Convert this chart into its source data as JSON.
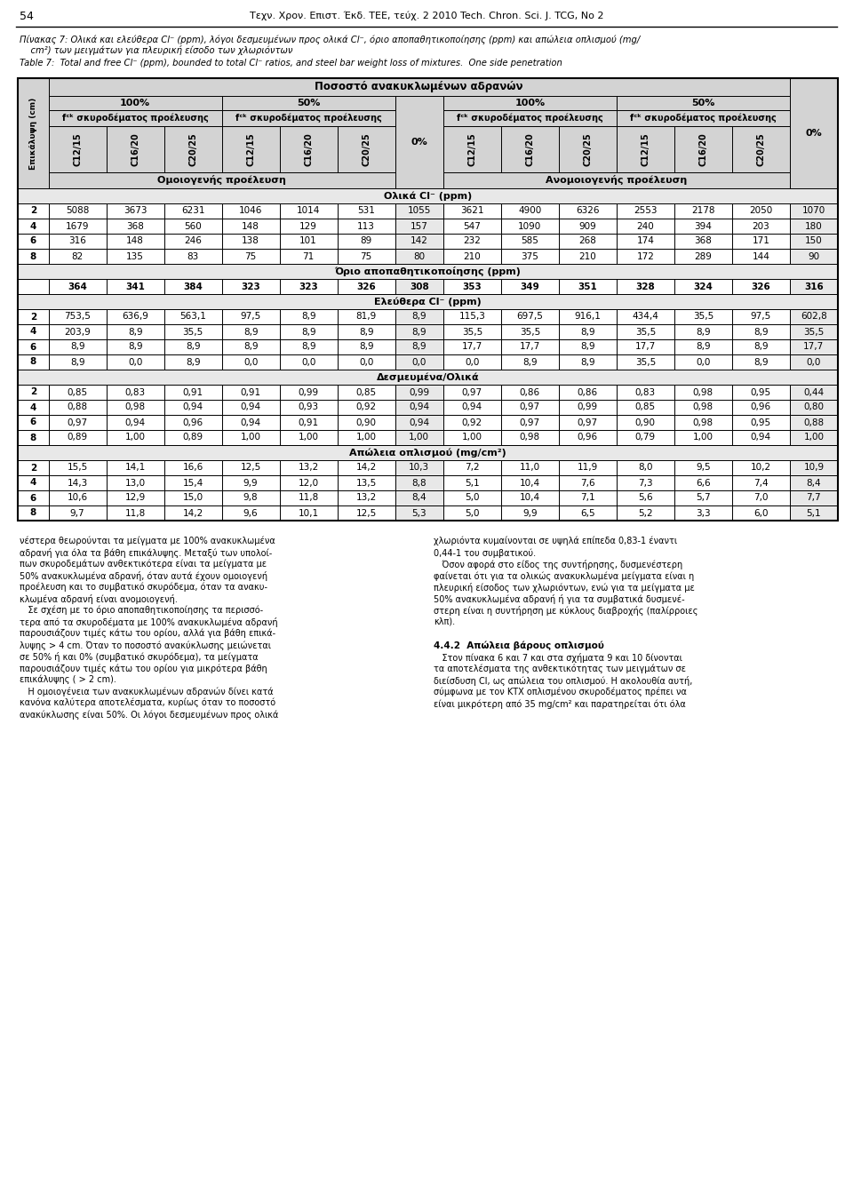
{
  "header_row1": "Ποσοστό ανακυκλωμένων αδρανών",
  "header_omoi": "Ομοιογενής προέλευση",
  "header_anomoi": "Ανομοιογενής προέλευση",
  "header_epik": "Επικάλυψη (cm)",
  "section_olika": "Ολικά Cl⁻ (ppm)",
  "section_orio": "Όριο αποπαθητικοποίησης (ppm)",
  "section_elefthera": "Ελεύθερα Cl⁻ (ppm)",
  "section_desmevmena": "Δεσμευμένα/Ολικά",
  "section_apol": "Απώλεια οπλισμού (mg/cm²)",
  "olika_data": [
    [
      2,
      5088,
      3673,
      6231,
      1046,
      1014,
      531,
      1055,
      3621,
      4900,
      6326,
      2553,
      2178,
      2050,
      1070
    ],
    [
      4,
      1679,
      368,
      560,
      148,
      129,
      113,
      157,
      547,
      1090,
      909,
      240,
      394,
      203,
      180
    ],
    [
      6,
      316,
      148,
      246,
      138,
      101,
      89,
      142,
      232,
      585,
      268,
      174,
      368,
      171,
      150
    ],
    [
      8,
      82,
      135,
      83,
      75,
      71,
      75,
      80,
      210,
      375,
      210,
      172,
      289,
      144,
      90
    ]
  ],
  "orio_data": [
    364,
    341,
    384,
    323,
    323,
    326,
    308,
    353,
    349,
    351,
    328,
    324,
    326,
    316
  ],
  "elefthera_data": [
    [
      2,
      "753,5",
      "636,9",
      "563,1",
      "97,5",
      "8,9",
      "81,9",
      "8,9",
      "115,3",
      "697,5",
      "916,1",
      "434,4",
      "35,5",
      "97,5",
      "602,8"
    ],
    [
      4,
      "203,9",
      "8,9",
      "35,5",
      "8,9",
      "8,9",
      "8,9",
      "8,9",
      "35,5",
      "35,5",
      "8,9",
      "35,5",
      "8,9",
      "8,9",
      "35,5"
    ],
    [
      6,
      "8,9",
      "8,9",
      "8,9",
      "8,9",
      "8,9",
      "8,9",
      "8,9",
      "17,7",
      "17,7",
      "8,9",
      "17,7",
      "8,9",
      "8,9",
      "17,7"
    ],
    [
      8,
      "8,9",
      "0,0",
      "8,9",
      "0,0",
      "0,0",
      "0,0",
      "0,0",
      "0,0",
      "8,9",
      "8,9",
      "35,5",
      "0,0",
      "8,9",
      "0,0"
    ]
  ],
  "desmevmena_data": [
    [
      2,
      "0,85",
      "0,83",
      "0,91",
      "0,91",
      "0,99",
      "0,85",
      "0,99",
      "0,97",
      "0,86",
      "0,86",
      "0,83",
      "0,98",
      "0,95",
      "0,44"
    ],
    [
      4,
      "0,88",
      "0,98",
      "0,94",
      "0,94",
      "0,93",
      "0,92",
      "0,94",
      "0,94",
      "0,97",
      "0,99",
      "0,85",
      "0,98",
      "0,96",
      "0,80"
    ],
    [
      6,
      "0,97",
      "0,94",
      "0,96",
      "0,94",
      "0,91",
      "0,90",
      "0,94",
      "0,92",
      "0,97",
      "0,97",
      "0,90",
      "0,98",
      "0,95",
      "0,88"
    ],
    [
      8,
      "0,89",
      "1,00",
      "0,89",
      "1,00",
      "1,00",
      "1,00",
      "1,00",
      "1,00",
      "0,98",
      "0,96",
      "0,79",
      "1,00",
      "0,94",
      "1,00"
    ]
  ],
  "apol_data": [
    [
      2,
      "15,5",
      "14,1",
      "16,6",
      "12,5",
      "13,2",
      "14,2",
      "10,3",
      "7,2",
      "11,0",
      "11,9",
      "8,0",
      "9,5",
      "10,2",
      "10,9"
    ],
    [
      4,
      "14,3",
      "13,0",
      "15,4",
      "9,9",
      "12,0",
      "13,5",
      "8,8",
      "5,1",
      "10,4",
      "7,6",
      "7,3",
      "6,6",
      "7,4",
      "8,4"
    ],
    [
      6,
      "10,6",
      "12,9",
      "15,0",
      "9,8",
      "11,8",
      "13,2",
      "8,4",
      "5,0",
      "10,4",
      "7,1",
      "5,6",
      "5,7",
      "7,0",
      "7,7"
    ],
    [
      8,
      "9,7",
      "11,8",
      "14,2",
      "9,6",
      "10,1",
      "12,5",
      "5,3",
      "5,0",
      "9,9",
      "6,5",
      "5,2",
      "3,3",
      "6,0",
      "5,1"
    ]
  ],
  "para1_col1": "νέστερα θεωρούνται τα μείγματα με 100% ανακυκλωμένα\nαδρανή για όλα τα βάθη επικάλυψης. Μεταξύ των υπολοί-\nπων σκυροδεμάτων ανθεκτικότερα είναι τα μείγματα με\n50% ανακυκλωμένα αδρανή, όταν αυτά έχουν ομοιογενή\nπροέλευση και το συμβατικό σκυρόδεμα, όταν τα ανακυ-\nκλωμένα αδρανή είναι ανομοιογενή.\n   Σε σχέση με το όριο αποπαθητικοποίησης τα περισσό-\nτερα από τα σκυροδέματα με 100% ανακυκλωμένα αδρανή\nπαρουσιάζουν τιμές κάτω του ορίου, αλλά για βάθη επικά-\nλυψης > 4 cm. Όταν το ποσοστό ανακύκλωσης μειώνεται\nσε 50% ή και 0% (συμβατικό σκυρόδεμα), τα μείγματα\nπαρουσιάζουν τιμές κάτω του ορίου για μικρότερα βάθη\nεπικάλυψης ( > 2 cm).\n   Η ομοιογένεια των ανακυκλωμένων αδρανών δίνει κατά\nκανόνα καλύτερα αποτελέσματα, κυρίως όταν το ποσοστό\nανακύκλωσης είναι 50%. Οι λόγοι δεσμευμένων προς ολικά",
  "para1_col2": "χλωριόντα κυμαίνονται σε υψηλά επίπεδα 0,83-1 έναντι\n0,44-1 του συμβατικού.\n   Όσον αφορά στο είδος της συντήρησης, δυσμενέστερη\nφαίνεται ότι για τα ολικώς ανακυκλωμένα μείγματα είναι η\nπλευρική είσοδος των χλωριόντων, ενώ για τα μείγματα με\n50% ανακυκλωμένα αδρανή ή για τα συμβατικά δυσμενέ-\nστερη είναι η συντήρηση με κύκλους διαβροχής (παλίρροιες\nκλπ).",
  "para2_title": "4.4.2  Απώλεια βάρους οπλισμού",
  "para2_text": "   Στον πίνακα 6 και 7 και στα σχήματα 9 και 10 δίνονται\nτα αποτελέσματα της ανθεκτικότητας των μειγμάτων σε\nδιείσδυση Cl, ως απώλεια του οπλισμού. Η ακολουθία αυτή,\nσύμφωνα με τον ΚΤΧ οπλισμένου σκυροδέματος πρέπει να\nείναι μικρότερη από 35 mg/cm² και παρατηρείται ότι όλα"
}
